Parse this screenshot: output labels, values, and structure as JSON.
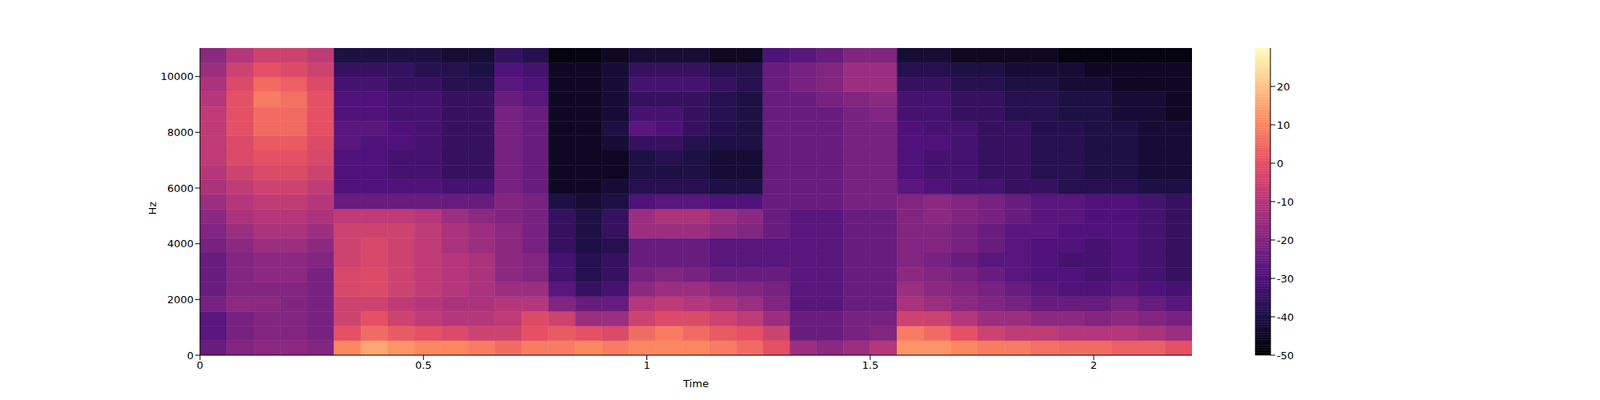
{
  "chart_data": {
    "type": "heatmap",
    "x_label": "Time",
    "y_label": "Hz",
    "x": [
      0,
      0.06,
      0.12,
      0.18,
      0.24,
      0.3,
      0.36,
      0.42,
      0.48,
      0.54,
      0.6,
      0.66,
      0.72,
      0.78,
      0.84,
      0.9,
      0.96,
      1.02,
      1.08,
      1.14,
      1.2,
      1.26,
      1.32,
      1.38,
      1.44,
      1.5,
      1.56,
      1.62,
      1.68,
      1.74,
      1.8,
      1.86,
      1.92,
      1.98,
      2.04,
      2.1,
      2.16
    ],
    "y": [
      0,
      525,
      1050,
      1575,
      2100,
      2625,
      3150,
      3675,
      4200,
      4725,
      5250,
      5775,
      6300,
      6825,
      7350,
      7875,
      8400,
      8925,
      9450,
      9975,
      10500
    ],
    "cells": [
      [
        -25,
        -20,
        -18,
        -18,
        -20,
        10,
        15,
        12,
        10,
        10,
        8,
        5,
        8,
        8,
        10,
        8,
        10,
        10,
        10,
        8,
        5,
        0,
        -15,
        -18,
        -15,
        -10,
        12,
        12,
        10,
        8,
        8,
        6,
        5,
        5,
        3,
        3,
        0
      ],
      [
        -28,
        -22,
        -20,
        -20,
        -22,
        0,
        5,
        2,
        0,
        -2,
        -5,
        -5,
        0,
        2,
        0,
        -2,
        5,
        8,
        5,
        2,
        0,
        -5,
        -25,
        -25,
        -22,
        -20,
        8,
        5,
        0,
        -5,
        -8,
        -8,
        -10,
        -10,
        -10,
        -12,
        -15
      ],
      [
        -28,
        -22,
        -20,
        -20,
        -22,
        -5,
        0,
        -5,
        -8,
        -10,
        -10,
        -8,
        -2,
        -5,
        -15,
        -15,
        -5,
        -2,
        -2,
        -5,
        -8,
        -15,
        -25,
        -25,
        -22,
        -22,
        -5,
        -5,
        -10,
        -15,
        -15,
        -18,
        -18,
        -20,
        -18,
        -20,
        -22
      ],
      [
        -22,
        -18,
        -18,
        -20,
        -22,
        -5,
        -5,
        -8,
        -10,
        -12,
        -12,
        -10,
        -10,
        -20,
        -25,
        -25,
        -10,
        -8,
        -10,
        -12,
        -15,
        -20,
        -28,
        -28,
        -25,
        -25,
        -12,
        -15,
        -18,
        -20,
        -22,
        -25,
        -25,
        -25,
        -22,
        -25,
        -28
      ],
      [
        -25,
        -20,
        -20,
        -20,
        -22,
        -3,
        -2,
        -5,
        -8,
        -10,
        -12,
        -15,
        -15,
        -28,
        -35,
        -32,
        -18,
        -15,
        -15,
        -18,
        -20,
        -22,
        -28,
        -28,
        -25,
        -25,
        -15,
        -18,
        -20,
        -22,
        -25,
        -28,
        -30,
        -30,
        -28,
        -30,
        -32
      ],
      [
        -25,
        -20,
        -18,
        -18,
        -22,
        -3,
        -2,
        -5,
        -8,
        -10,
        -12,
        -18,
        -20,
        -32,
        -38,
        -35,
        -22,
        -20,
        -22,
        -25,
        -25,
        -25,
        -28,
        -28,
        -25,
        -25,
        -18,
        -20,
        -22,
        -25,
        -28,
        -30,
        -30,
        -32,
        -30,
        -32,
        -35
      ],
      [
        -25,
        -20,
        -18,
        -18,
        -20,
        -5,
        -3,
        -5,
        -8,
        -10,
        -12,
        -18,
        -20,
        -32,
        -38,
        -35,
        -25,
        -25,
        -25,
        -28,
        -28,
        -28,
        -28,
        -28,
        -25,
        -25,
        -20,
        -22,
        -25,
        -28,
        -28,
        -30,
        -32,
        -32,
        -30,
        -32,
        -35
      ],
      [
        -22,
        -18,
        -15,
        -15,
        -18,
        -5,
        -3,
        -5,
        -8,
        -12,
        -15,
        -18,
        -22,
        -35,
        -40,
        -38,
        -25,
        -25,
        -25,
        -28,
        -28,
        -28,
        -28,
        -28,
        -25,
        -25,
        -20,
        -20,
        -22,
        -25,
        -28,
        -30,
        -30,
        -32,
        -30,
        -32,
        -35
      ],
      [
        -20,
        -15,
        -12,
        -12,
        -15,
        -5,
        -5,
        -5,
        -8,
        -12,
        -15,
        -18,
        -22,
        -35,
        -40,
        -35,
        -15,
        -15,
        -15,
        -18,
        -20,
        -25,
        -28,
        -28,
        -25,
        -25,
        -20,
        -20,
        -22,
        -25,
        -28,
        -28,
        -30,
        -30,
        -30,
        -32,
        -35
      ],
      [
        -18,
        -12,
        -10,
        -10,
        -12,
        -8,
        -8,
        -8,
        -10,
        -15,
        -18,
        -20,
        -22,
        -35,
        -40,
        -35,
        -15,
        -12,
        -12,
        -15,
        -18,
        -25,
        -28,
        -28,
        -25,
        -25,
        -20,
        -18,
        -20,
        -22,
        -25,
        -28,
        -28,
        -30,
        -30,
        -32,
        -35
      ],
      [
        -15,
        -10,
        -8,
        -8,
        -10,
        -25,
        -25,
        -25,
        -25,
        -25,
        -25,
        -20,
        -22,
        -40,
        -42,
        -40,
        -30,
        -28,
        -28,
        -30,
        -30,
        -25,
        -25,
        -25,
        -22,
        -22,
        -20,
        -18,
        -20,
        -22,
        -25,
        -28,
        -28,
        -30,
        -30,
        -32,
        -35
      ],
      [
        -12,
        -8,
        -5,
        -5,
        -8,
        -30,
        -30,
        -30,
        -30,
        -32,
        -32,
        -22,
        -25,
        -45,
        -45,
        -42,
        -38,
        -38,
        -38,
        -40,
        -40,
        -25,
        -25,
        -25,
        -22,
        -22,
        -28,
        -30,
        -32,
        -32,
        -35,
        -35,
        -38,
        -38,
        -38,
        -40,
        -40
      ],
      [
        -10,
        -5,
        -2,
        -2,
        -5,
        -30,
        -30,
        -32,
        -32,
        -35,
        -35,
        -22,
        -25,
        -45,
        -45,
        -45,
        -40,
        -40,
        -40,
        -42,
        -42,
        -25,
        -25,
        -25,
        -22,
        -22,
        -30,
        -32,
        -32,
        -35,
        -35,
        -38,
        -38,
        -40,
        -40,
        -42,
        -42
      ],
      [
        -8,
        -2,
        0,
        0,
        -3,
        -30,
        -30,
        -32,
        -32,
        -35,
        -35,
        -22,
        -25,
        -45,
        -45,
        -45,
        -40,
        -38,
        -40,
        -42,
        -42,
        -25,
        -25,
        -25,
        -22,
        -22,
        -30,
        -32,
        -32,
        -35,
        -35,
        -38,
        -38,
        -40,
        -40,
        -42,
        -42
      ],
      [
        -8,
        -2,
        2,
        2,
        -2,
        -28,
        -30,
        -30,
        -32,
        -35,
        -35,
        -22,
        -25,
        -45,
        -45,
        -42,
        -35,
        -35,
        -38,
        -40,
        -40,
        -25,
        -25,
        -25,
        -22,
        -22,
        -30,
        -30,
        -32,
        -35,
        -35,
        -38,
        -38,
        -40,
        -40,
        -42,
        -42
      ],
      [
        -8,
        0,
        5,
        5,
        0,
        -28,
        -28,
        -30,
        -32,
        -35,
        -35,
        -22,
        -25,
        -45,
        -45,
        -40,
        -28,
        -30,
        -35,
        -38,
        -40,
        -25,
        -25,
        -25,
        -22,
        -22,
        -30,
        -32,
        -32,
        -35,
        -35,
        -38,
        -38,
        -40,
        -40,
        -42,
        -42
      ],
      [
        -8,
        0,
        5,
        5,
        0,
        -30,
        -30,
        -32,
        -32,
        -35,
        -35,
        -22,
        -25,
        -45,
        -45,
        -42,
        -32,
        -32,
        -35,
        -38,
        -40,
        -25,
        -25,
        -25,
        -22,
        -20,
        -32,
        -32,
        -35,
        -35,
        -38,
        -38,
        -40,
        -40,
        -42,
        -42,
        -45
      ],
      [
        -10,
        0,
        8,
        6,
        0,
        -30,
        -30,
        -32,
        -32,
        -35,
        -35,
        -25,
        -28,
        -45,
        -45,
        -42,
        -35,
        -35,
        -35,
        -38,
        -40,
        -25,
        -25,
        -22,
        -20,
        -18,
        -32,
        -32,
        -35,
        -35,
        -38,
        -38,
        -40,
        -40,
        -42,
        -42,
        -45
      ],
      [
        -12,
        -2,
        5,
        3,
        -2,
        -32,
        -32,
        -35,
        -35,
        -38,
        -38,
        -28,
        -30,
        -45,
        -45,
        -42,
        -32,
        -32,
        -32,
        -35,
        -38,
        -25,
        -22,
        -20,
        -15,
        -15,
        -35,
        -35,
        -38,
        -38,
        -40,
        -40,
        -42,
        -42,
        -45,
        -45,
        -45
      ],
      [
        -15,
        -5,
        0,
        -2,
        -5,
        -35,
        -35,
        -35,
        -38,
        -38,
        -40,
        -30,
        -32,
        -45,
        -45,
        -42,
        -35,
        -35,
        -35,
        -38,
        -38,
        -25,
        -22,
        -20,
        -15,
        -15,
        -38,
        -38,
        -40,
        -40,
        -42,
        -42,
        -42,
        -45,
        -45,
        -45,
        -45
      ],
      [
        -18,
        -10,
        -5,
        -5,
        -8,
        -40,
        -40,
        -40,
        -40,
        -42,
        -42,
        -35,
        -38,
        -48,
        -48,
        -45,
        -42,
        -42,
        -42,
        -45,
        -45,
        -30,
        -28,
        -25,
        -20,
        -20,
        -42,
        -42,
        -45,
        -45,
        -45,
        -45,
        -48,
        -48,
        -48,
        -48,
        -48
      ]
    ],
    "xlim": [
      0,
      2.22
    ],
    "ylim": [
      0,
      11025
    ],
    "xticks": [
      0,
      0.5,
      1,
      1.5,
      2
    ],
    "yticks": [
      0,
      2000,
      4000,
      6000,
      8000,
      10000
    ],
    "colorbar": {
      "range": [
        -50,
        30
      ],
      "ticks": [
        -50,
        -40,
        -30,
        -20,
        -10,
        0,
        10,
        20
      ]
    }
  }
}
